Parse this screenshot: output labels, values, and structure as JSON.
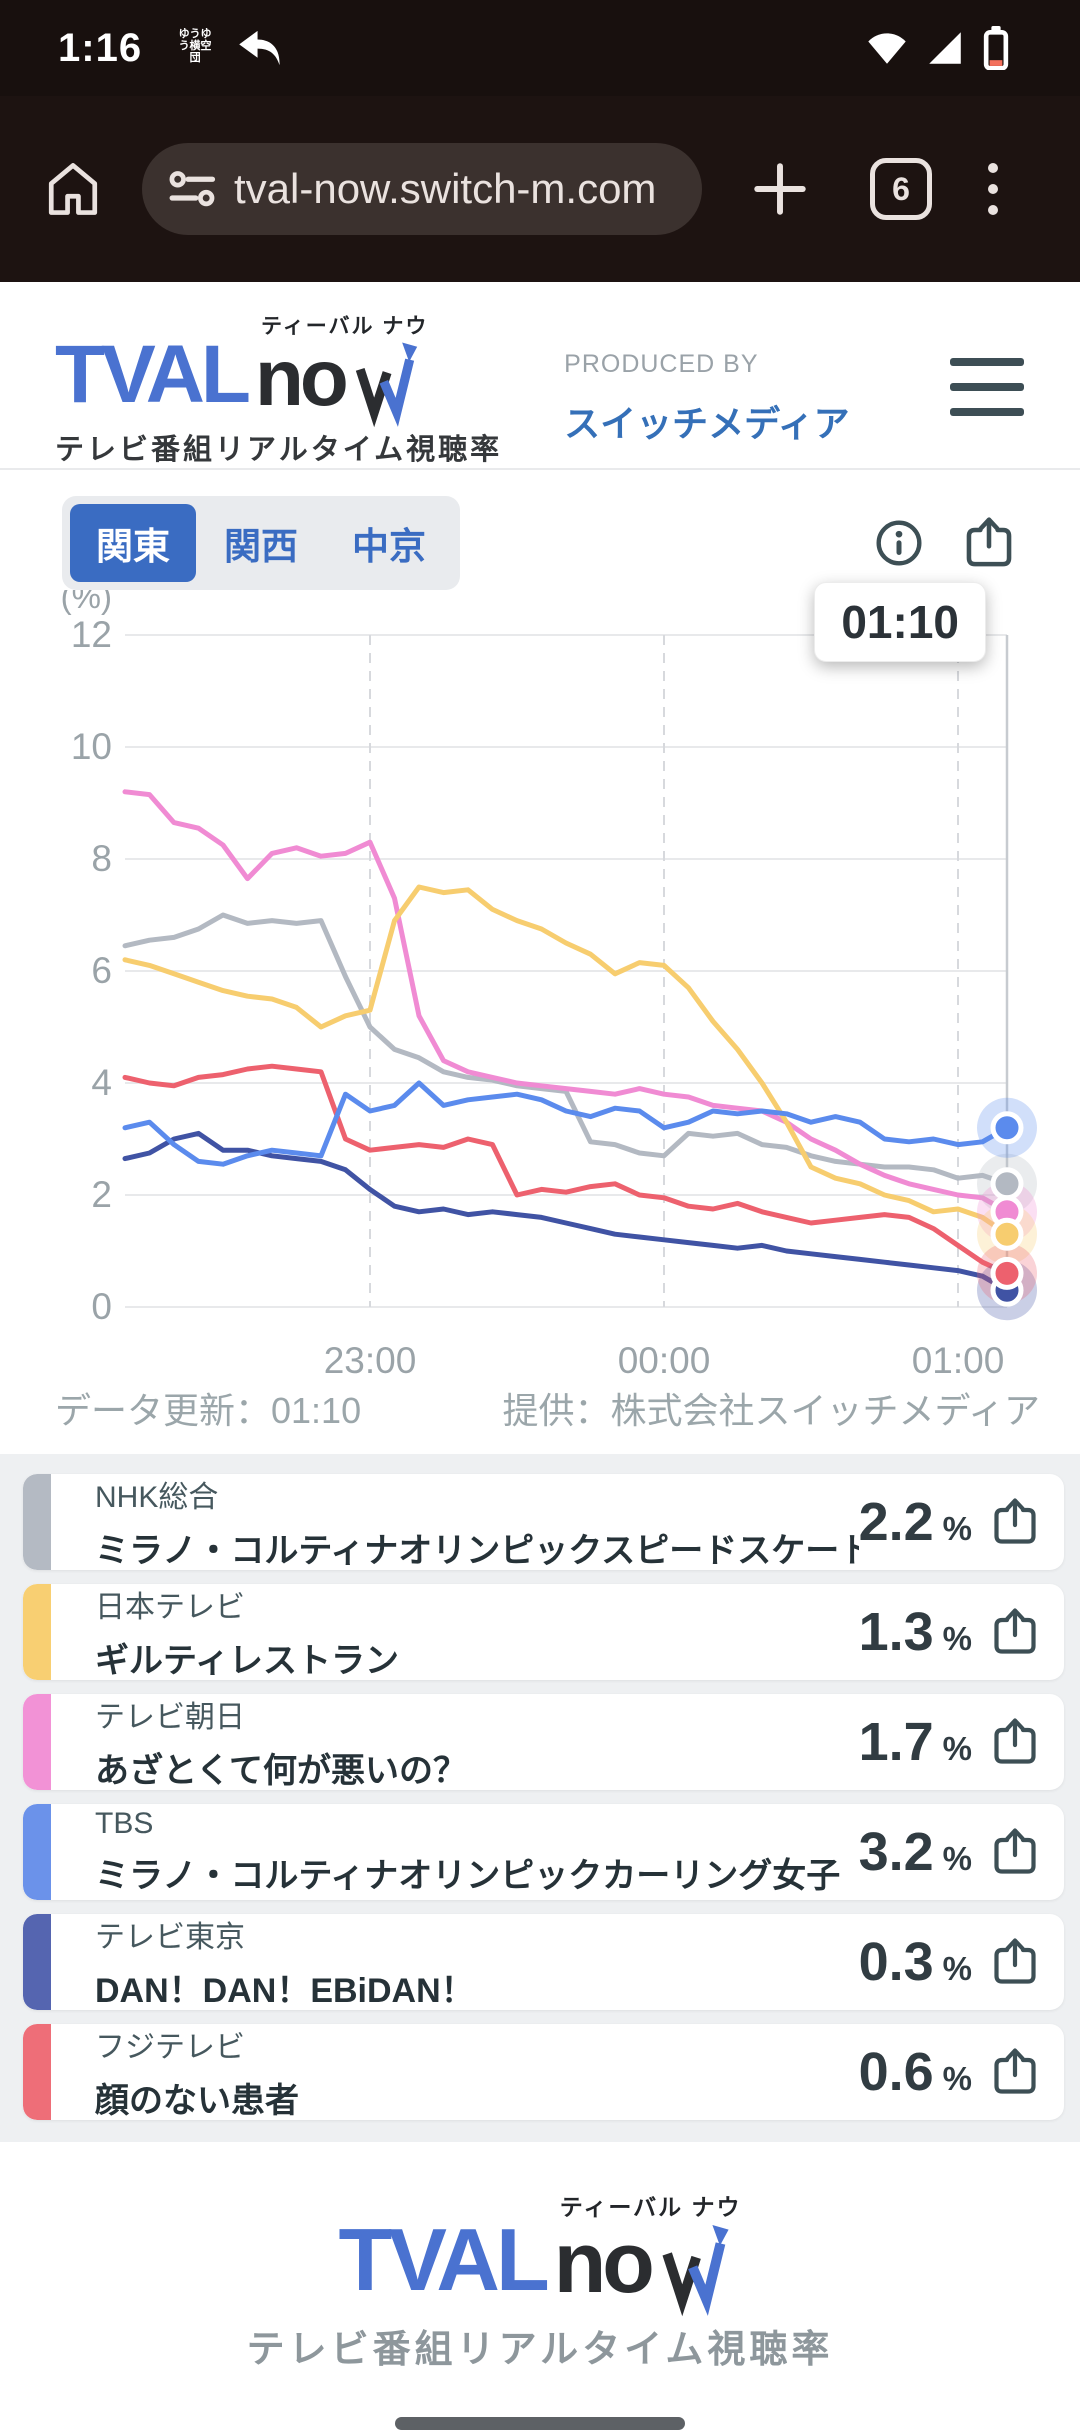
{
  "status_bar": {
    "time": "1:16",
    "notification_app_label": "ゆうゆう横空団"
  },
  "browser": {
    "url": "tval-now.switch-m.com",
    "tab_count": "6"
  },
  "header": {
    "logo": {
      "tval": "TVAL",
      "now_no": "no",
      "ruby": "ティーバル ナウ",
      "subtitle": "テレビ番組リアルタイム視聴率"
    },
    "produced_by_label": "PRODUCED BY",
    "producer": "スイッチメディア"
  },
  "controls": {
    "regions": [
      {
        "label": "関東",
        "selected": true
      },
      {
        "label": "関西",
        "selected": false
      },
      {
        "label": "中京",
        "selected": false
      }
    ]
  },
  "tooltip": {
    "time": "01:10"
  },
  "chart_data": {
    "type": "line",
    "ylabel": "(%)",
    "ymin": 0,
    "ymax": 12,
    "ytick_step": 2,
    "x_start": "22:10",
    "x_end": "01:10",
    "total_minutes": 180,
    "step_minutes": 5,
    "xticks": [
      {
        "label": "23:00",
        "minute": 50
      },
      {
        "label": "00:00",
        "minute": 110
      },
      {
        "label": "01:00",
        "minute": 170
      }
    ],
    "current_time": "01:10",
    "grid": true,
    "legend_position": "none",
    "series": [
      {
        "name": "NHK総合",
        "color": "#b3b9c2",
        "end_value": 2.2,
        "values": [
          6.45,
          6.55,
          6.6,
          6.75,
          7.0,
          6.85,
          6.9,
          6.85,
          6.9,
          5.9,
          5.0,
          4.6,
          4.45,
          4.2,
          4.1,
          4.05,
          3.95,
          3.9,
          3.85,
          2.95,
          2.9,
          2.75,
          2.7,
          3.1,
          3.05,
          3.1,
          2.9,
          2.85,
          2.7,
          2.6,
          2.55,
          2.5,
          2.5,
          2.45,
          2.3,
          2.35,
          2.2
        ]
      },
      {
        "name": "日本テレビ",
        "color": "#f7cd6f",
        "end_value": 1.3,
        "values": [
          6.2,
          6.1,
          5.95,
          5.8,
          5.65,
          5.55,
          5.5,
          5.35,
          5.0,
          5.2,
          5.3,
          6.9,
          7.5,
          7.4,
          7.45,
          7.1,
          6.9,
          6.75,
          6.5,
          6.3,
          5.95,
          6.15,
          6.1,
          5.7,
          5.1,
          4.6,
          4.0,
          3.3,
          2.5,
          2.3,
          2.2,
          2.0,
          1.9,
          1.7,
          1.75,
          1.6,
          1.3
        ]
      },
      {
        "name": "テレビ朝日",
        "color": "#f08bd3",
        "end_value": 1.7,
        "values": [
          9.2,
          9.15,
          8.65,
          8.55,
          8.25,
          7.65,
          8.1,
          8.2,
          8.05,
          8.1,
          8.3,
          7.3,
          5.2,
          4.4,
          4.2,
          4.1,
          4.0,
          3.95,
          3.9,
          3.85,
          3.8,
          3.9,
          3.8,
          3.75,
          3.6,
          3.55,
          3.5,
          3.3,
          3.0,
          2.8,
          2.55,
          2.35,
          2.2,
          2.1,
          2.0,
          1.95,
          1.7
        ]
      },
      {
        "name": "TBS",
        "color": "#5b8bed",
        "end_value": 3.2,
        "values": [
          3.2,
          3.3,
          2.9,
          2.6,
          2.55,
          2.7,
          2.8,
          2.75,
          2.7,
          3.8,
          3.5,
          3.6,
          4.0,
          3.6,
          3.7,
          3.75,
          3.8,
          3.7,
          3.5,
          3.4,
          3.55,
          3.5,
          3.2,
          3.3,
          3.5,
          3.45,
          3.5,
          3.45,
          3.3,
          3.4,
          3.3,
          3.0,
          2.95,
          3.0,
          2.9,
          2.95,
          3.2
        ]
      },
      {
        "name": "テレビ東京",
        "color": "#4053a4",
        "end_value": 0.3,
        "values": [
          2.65,
          2.75,
          3.0,
          3.1,
          2.8,
          2.8,
          2.7,
          2.65,
          2.6,
          2.45,
          2.1,
          1.8,
          1.7,
          1.75,
          1.65,
          1.7,
          1.65,
          1.6,
          1.5,
          1.4,
          1.3,
          1.25,
          1.2,
          1.15,
          1.1,
          1.05,
          1.1,
          1.0,
          0.95,
          0.9,
          0.85,
          0.8,
          0.75,
          0.7,
          0.65,
          0.55,
          0.3
        ]
      },
      {
        "name": "フジテレビ",
        "color": "#ed616e",
        "end_value": 0.6,
        "values": [
          4.1,
          4.0,
          3.95,
          4.1,
          4.15,
          4.25,
          4.3,
          4.25,
          4.2,
          3.0,
          2.8,
          2.85,
          2.9,
          2.85,
          3.0,
          2.9,
          2.0,
          2.1,
          2.05,
          2.15,
          2.2,
          2.0,
          1.95,
          1.8,
          1.75,
          1.85,
          1.7,
          1.6,
          1.5,
          1.55,
          1.6,
          1.65,
          1.6,
          1.4,
          1.1,
          0.8,
          0.6
        ]
      }
    ],
    "draw_order": [
      0,
      2,
      1,
      4,
      5,
      3
    ]
  },
  "captions": {
    "updated": "データ更新：01:10",
    "provider": "提供：株式会社スイッチメディア"
  },
  "channels": [
    {
      "station": "NHK総合",
      "program": "ミラノ・コルティナオリンピックスピードスケート",
      "value": "2.2",
      "unit": "%",
      "color": "#b4bac3"
    },
    {
      "station": "日本テレビ",
      "program": "ギルティレストラン",
      "value": "1.3",
      "unit": "%",
      "color": "#f8cf72"
    },
    {
      "station": "テレビ朝日",
      "program": "あざとくて何が悪いの？",
      "value": "1.7",
      "unit": "%",
      "color": "#f292d6"
    },
    {
      "station": "TBS",
      "program": "ミラノ・コルティナオリンピックカーリング女子",
      "value": "3.2",
      "unit": "%",
      "color": "#6b92ea"
    },
    {
      "station": "テレビ東京",
      "program": "DAN！DAN！EBiDAN！",
      "value": "0.3",
      "unit": "%",
      "color": "#5565b0"
    },
    {
      "station": "フジテレビ",
      "program": "顔のない患者",
      "value": "0.6",
      "unit": "%",
      "color": "#ee6e78"
    }
  ],
  "footer": {
    "logo": {
      "tval": "TVAL",
      "now_no": "no",
      "ruby": "ティーバル ナウ",
      "subtitle": "テレビ番組リアルタイム視聴率"
    }
  },
  "colors": {
    "accent_blue": "#3a6cc2",
    "icon_slate": "#3d4f55",
    "axis_text": "#9aa3a8",
    "grid": "#e8e9eb",
    "grid_dashed": "#d7d9dd",
    "current_time_line": "#c7cbd0",
    "battery_low": "#f3705c"
  }
}
